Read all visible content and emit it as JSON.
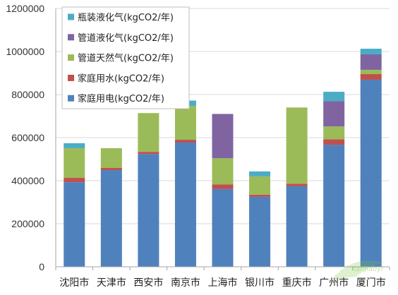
{
  "chart_data": {
    "type": "bar",
    "stacked": true,
    "categories": [
      "沈阳市",
      "天津市",
      "西安市",
      "南京市",
      "上海市",
      "银川市",
      "重庆市",
      "广州市",
      "厦门市"
    ],
    "series": [
      {
        "name": "家庭用电(kgCO2/年)",
        "color": "#4F81BD",
        "values": [
          393000,
          449000,
          524000,
          577000,
          361000,
          325000,
          374000,
          567000,
          869000
        ]
      },
      {
        "name": "家庭用水(kgCO2/年)",
        "color": "#C0504D",
        "values": [
          20000,
          10000,
          10000,
          13000,
          22000,
          10000,
          12000,
          25000,
          26000
        ]
      },
      {
        "name": "管道天然气(kgCO2/年)",
        "color": "#9BBB59",
        "values": [
          138000,
          92000,
          180000,
          157000,
          121000,
          85000,
          354000,
          60000,
          20000
        ]
      },
      {
        "name": "管道液化气(kgCO2/年)",
        "color": "#8064A2",
        "values": [
          0,
          0,
          0,
          0,
          206000,
          0,
          0,
          118000,
          72000
        ]
      },
      {
        "name": "瓶装液化气(kgCO2/年)",
        "color": "#4BACC6",
        "values": [
          23000,
          0,
          0,
          25000,
          0,
          23000,
          0,
          43000,
          26000
        ]
      }
    ],
    "ylim": [
      0,
      1200000
    ],
    "yticks": [
      0,
      200000,
      400000,
      600000,
      800000,
      1000000,
      1200000
    ],
    "grid": true,
    "legend_position": "top-left"
  },
  "watermark": {
    "text": "tanjiaoyi"
  }
}
